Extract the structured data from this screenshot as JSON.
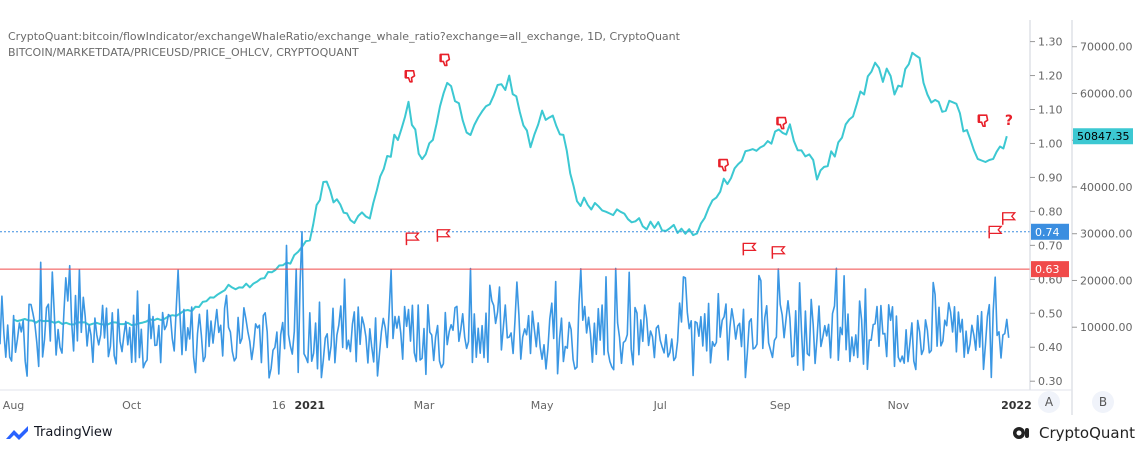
{
  "header": {
    "line1": "CryptoQuant:bitcoin/flowIndicator/exchangeWhaleRatio/exchange_whale_ratio?exchange=all_exchange, 1D, CryptoQuant",
    "line2": "BITCOIN/MARKETDATA/PRICEUSD/PRICE_OHLCV, CRYPTOQUANT"
  },
  "footer": {
    "tradingview_label": "TradingView",
    "cryptoquant_label": "CryptoQuant"
  },
  "buttons": {
    "a_label": "A",
    "b_label": "B"
  },
  "colors": {
    "ratio_line": "#3b97e3",
    "price_line": "#3cc8d2",
    "red_line": "#f04a4a",
    "blue_dotted": "#3b8ee0",
    "price_badge": "#3cc8d2",
    "flag": "#e8202a",
    "axis_text": "#666666"
  },
  "chart_data": {
    "type": "line",
    "x_ticks": [
      "Aug",
      "Oct",
      "16",
      "2021",
      "Mar",
      "May",
      "Jul",
      "Sep",
      "Nov",
      "2022"
    ],
    "left_axis": {
      "ticks": [
        "1.30",
        "1.20",
        "1.10",
        "1.00",
        "0.90",
        "0.80",
        "0.70",
        "0.60",
        "0.50",
        "0.40",
        "0.30"
      ],
      "range": [
        0.28,
        1.34
      ]
    },
    "right_axis": {
      "ticks": [
        "70000.00",
        "60000.00",
        "50000.00",
        "40000.00",
        "30000.00",
        "20000.00",
        "10000.00"
      ],
      "range": [
        -3000,
        74000
      ]
    },
    "markers": {
      "red_level_label": "0.63",
      "red_level": 0.63,
      "blue_level_label": "0.74",
      "blue_level": 0.74,
      "price_label": "50847.35",
      "price_level": 50847.35,
      "question_mark": "?"
    },
    "series": [
      {
        "name": "BITCOIN/MARKETDATA/PRICEUSD/PRICE_OHLCV",
        "axis": "right",
        "points": [
          [
            "Aug",
            11500
          ],
          [
            "Sep",
            10800
          ],
          [
            "Oct",
            10700
          ],
          [
            "Oct 20",
            12000
          ],
          [
            "Nov",
            13800
          ],
          [
            "Nov 20",
            18500
          ],
          [
            "Dec",
            19200
          ],
          [
            "Dec 20",
            23500
          ],
          [
            "2021",
            29000
          ],
          [
            "Jan 8",
            41000
          ],
          [
            "Jan 15",
            37000
          ],
          [
            "Jan 22",
            32500
          ],
          [
            "Feb",
            34000
          ],
          [
            "Feb 10",
            46000
          ],
          [
            "Feb 21",
            57000
          ],
          [
            "Feb 28",
            45000
          ],
          [
            "Mar 13",
            61000
          ],
          [
            "Mar 25",
            52000
          ],
          [
            "Apr 14",
            63500
          ],
          [
            "Apr 25",
            49000
          ],
          [
            "May",
            57000
          ],
          [
            "May 12",
            50000
          ],
          [
            "May 19",
            37000
          ],
          [
            "Jun",
            36000
          ],
          [
            "Jun 22",
            32000
          ],
          [
            "Jul 20",
            30000
          ],
          [
            "Aug",
            40000
          ],
          [
            "Aug 14",
            47000
          ],
          [
            "Sep 6",
            52000
          ],
          [
            "Sep 20",
            43000
          ],
          [
            "Oct",
            48000
          ],
          [
            "Oct 20",
            66000
          ],
          [
            "Nov",
            61000
          ],
          [
            "Nov 10",
            68000
          ],
          [
            "Nov 20",
            57000
          ],
          [
            "Dec",
            57000
          ],
          [
            "Dec 10",
            47000
          ],
          [
            "Dec 20",
            46500
          ],
          [
            "Dec 27",
            50847
          ]
        ]
      },
      {
        "name": "exchange_whale_ratio",
        "axis": "left",
        "range": [
          0.3,
          0.74
        ],
        "spikes": [
          [
            "Feb 22",
            0.68
          ],
          [
            "Mar 10",
            0.69
          ],
          [
            "Jul 13",
            0.72
          ],
          [
            "Aug 15",
            0.65
          ],
          [
            "Aug 30",
            0.64
          ],
          [
            "Dec 20",
            0.7
          ],
          [
            "Dec 28",
            0.74
          ]
        ]
      }
    ]
  }
}
